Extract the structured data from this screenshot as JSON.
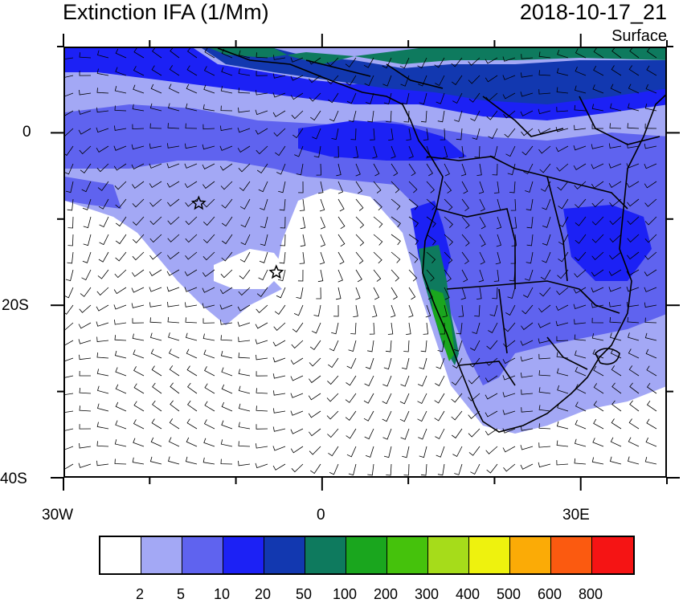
{
  "title": "Extinction IFA (1/Mm)",
  "timestamp": "2018-10-17_21",
  "level": "Surface",
  "axes": {
    "x_labels": [
      "30W",
      "0",
      "30E"
    ],
    "y_labels": [
      "0",
      "20S",
      "40S"
    ]
  },
  "colorbar": {
    "colors": [
      "#ffffff",
      "#a3a8f5",
      "#5f63ef",
      "#1c21f5",
      "#1238b0",
      "#0e7a5e",
      "#1aa61e",
      "#45c20c",
      "#a6dc1a",
      "#eef20e",
      "#fbab06",
      "#fb5a10",
      "#f51414"
    ],
    "labels": [
      "2",
      "5",
      "10",
      "20",
      "50",
      "100",
      "200",
      "300",
      "400",
      "500",
      "600",
      "800"
    ]
  },
  "markers": [
    {
      "name": "station-star-1",
      "lon": -14.5,
      "lat": -8
    },
    {
      "name": "station-star-2",
      "lon": -5.5,
      "lat": -16
    }
  ]
}
